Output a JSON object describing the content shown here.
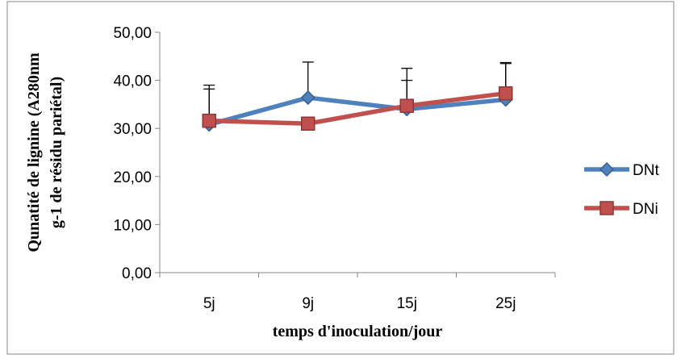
{
  "chart_data": {
    "type": "line",
    "title": "",
    "xlabel": "temps d'inoculation/jour",
    "ylabel_lines": [
      "Qunatité de lignine (A280nm",
      "g-1 de résidu pariétal)"
    ],
    "categories": [
      "5j",
      "9j",
      "15j",
      "25j"
    ],
    "ylim": [
      0,
      50
    ],
    "ytick_labels": [
      "0,00",
      "10,00",
      "20,00",
      "30,00",
      "40,00",
      "50,00"
    ],
    "grid": false,
    "legend_position": "right",
    "series": [
      {
        "name": "DNt",
        "values": [
          30.8,
          36.4,
          34.0,
          36.0
        ],
        "error_upper": [
          8.2,
          7.4,
          8.5,
          7.7
        ],
        "color": "#4f81bd",
        "marker": "diamond"
      },
      {
        "name": "DNi",
        "values": [
          31.6,
          31.0,
          34.7,
          37.3
        ],
        "error_upper": [
          6.6,
          0,
          5.3,
          6.2
        ],
        "color": "#c0504d",
        "marker": "square"
      }
    ]
  }
}
